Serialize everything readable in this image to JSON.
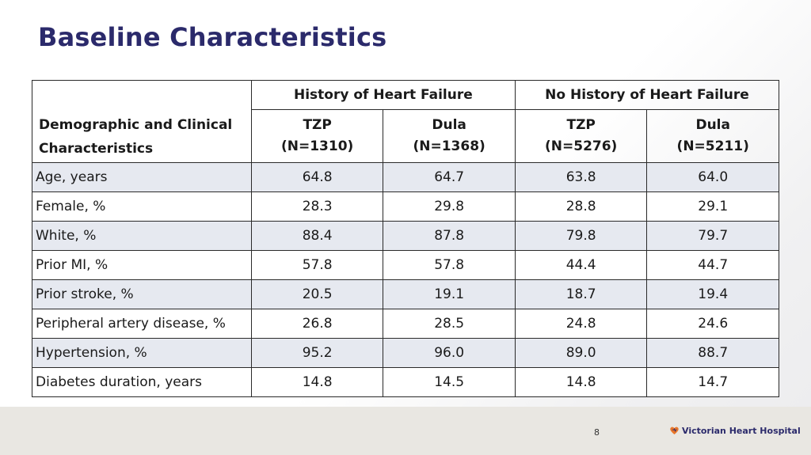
{
  "title": "Baseline Characteristics",
  "table": {
    "row_header": "Demographic and Clinical Characteristics",
    "groups": [
      "History of Heart Failure",
      "No History of Heart Failure"
    ],
    "subcolumns": [
      {
        "name": "TZP",
        "n": "(N=1310)"
      },
      {
        "name": "Dula",
        "n": "(N=1368)"
      },
      {
        "name": "TZP",
        "n": "(N=5276)"
      },
      {
        "name": "Dula",
        "n": "(N=5211)"
      }
    ],
    "rows": [
      {
        "label": "Age, years",
        "values": [
          "64.8",
          "64.7",
          "63.8",
          "64.0"
        ]
      },
      {
        "label": "Female, %",
        "values": [
          "28.3",
          "29.8",
          "28.8",
          "29.1"
        ]
      },
      {
        "label": "White, %",
        "values": [
          "88.4",
          "87.8",
          "79.8",
          "79.7"
        ]
      },
      {
        "label": "Prior MI, %",
        "values": [
          "57.8",
          "57.8",
          "44.4",
          "44.7"
        ]
      },
      {
        "label": "Prior stroke, %",
        "values": [
          "20.5",
          "19.1",
          "18.7",
          "19.4"
        ]
      },
      {
        "label": "Peripheral artery disease, %",
        "values": [
          "26.8",
          "28.5",
          "24.8",
          "24.6"
        ]
      },
      {
        "label": "Hypertension, %",
        "values": [
          "95.2",
          "96.0",
          "89.0",
          "88.7"
        ]
      },
      {
        "label": "Diabetes duration, years",
        "values": [
          "14.8",
          "14.5",
          "14.8",
          "14.7"
        ]
      }
    ]
  },
  "footer": {
    "page_number": "8",
    "logo_text": "Victorian Heart Hospital",
    "logo_icon": "heart-logo-icon"
  },
  "colors": {
    "title": "#2b2a6b",
    "row_shade": "#e6e9f0",
    "footer_bg": "#e9e7e2"
  }
}
